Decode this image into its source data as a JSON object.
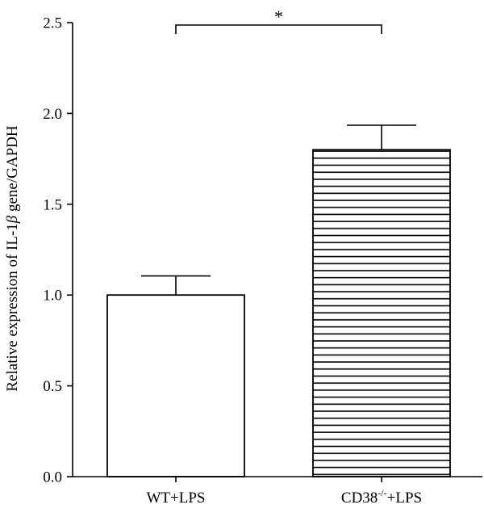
{
  "chart_data": {
    "type": "bar",
    "title": "",
    "ylabel_parts": [
      "Relative expression of IL-1",
      "β",
      " gene/GAPDH"
    ],
    "ylim": [
      0,
      2.5
    ],
    "yticks": [
      "0.0",
      "0.5",
      "1.0",
      "1.5",
      "2.0",
      "2.5"
    ],
    "categories": [
      {
        "base": "WT+LPS",
        "sup": "",
        "tail": ""
      },
      {
        "base": "CD38",
        "sup": "-/-",
        "tail": "+LPS"
      }
    ],
    "values": [
      1.0,
      1.8
    ],
    "errors": [
      0.105,
      0.135
    ],
    "fills": [
      "open",
      "horizontal-stripes"
    ],
    "significance": {
      "label": "*",
      "between": [
        0,
        1
      ]
    },
    "grid": false,
    "legend": "none"
  }
}
